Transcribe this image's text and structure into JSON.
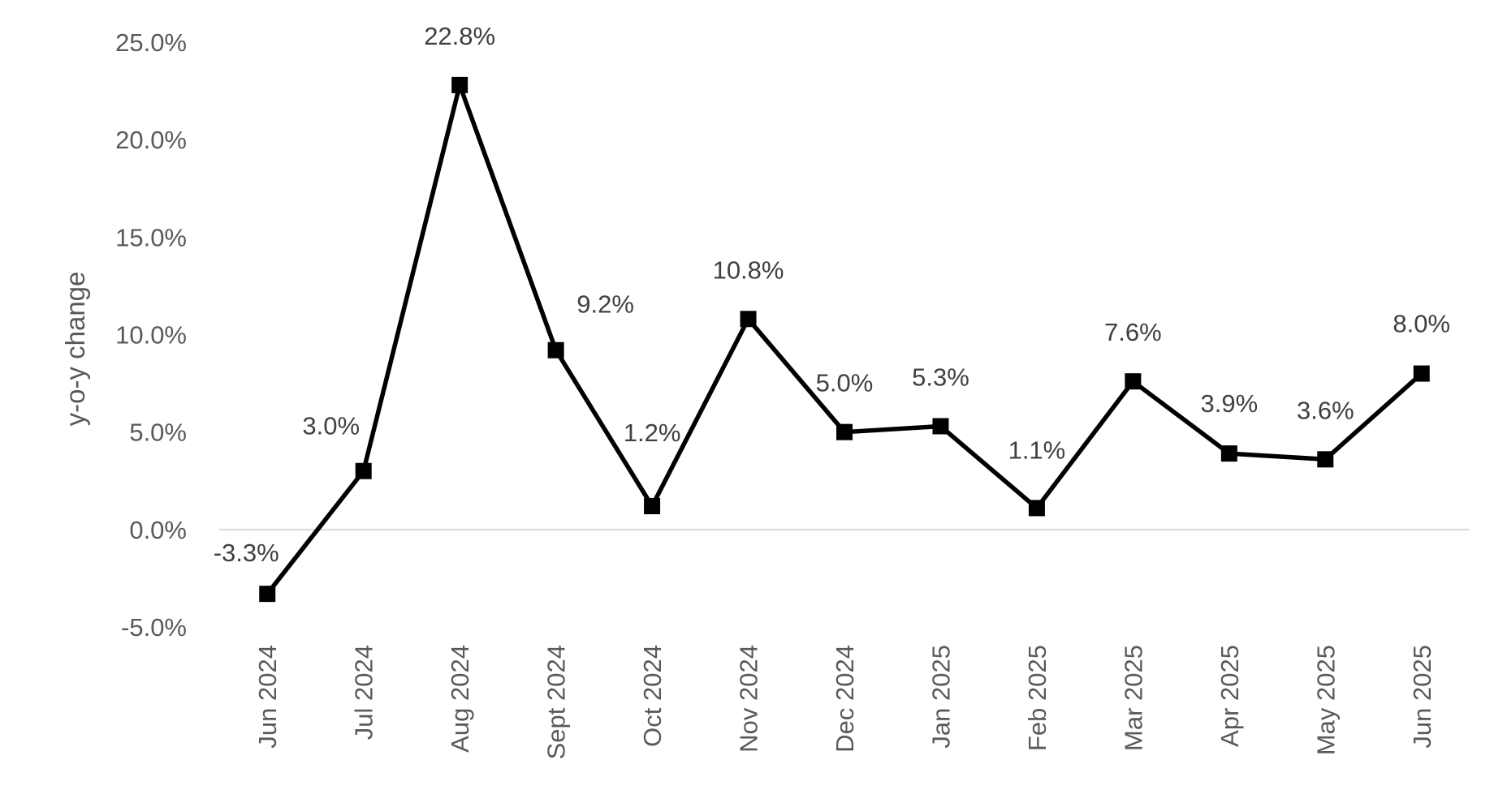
{
  "chart_data": {
    "type": "line",
    "title": "",
    "xlabel": "",
    "ylabel": "y-o-y change",
    "categories": [
      "Jun 2024",
      "Jul 2024",
      "Aug 2024",
      "Sept 2024",
      "Oct 2024",
      "Nov 2024",
      "Dec 2024",
      "Jan 2025",
      "Feb 2025",
      "Mar 2025",
      "Apr 2025",
      "May 2025",
      "Jun 2025"
    ],
    "series": [
      {
        "values": [
          -3.3,
          3.0,
          22.8,
          9.2,
          1.2,
          10.8,
          5.0,
          5.3,
          1.1,
          7.6,
          3.9,
          3.6,
          8.0
        ],
        "data_labels": [
          "-3.3%",
          "3.0%",
          "22.8%",
          "9.2%",
          "1.2%",
          "10.8%",
          "5.0%",
          "5.3%",
          "1.1%",
          "7.6%",
          "3.9%",
          "3.6%",
          "8.0%"
        ],
        "color": "#000000",
        "marker": "square"
      }
    ],
    "ylim": [
      -5,
      25
    ],
    "yticks": [
      -5,
      0,
      5,
      10,
      15,
      20,
      25
    ],
    "ytick_labels": [
      "-5.0%",
      "0.0%",
      "5.0%",
      "10.0%",
      "15.0%",
      "20.0%",
      "25.0%"
    ],
    "grid": false,
    "legend": "none",
    "zero_line_color": "#d9d9d9"
  }
}
